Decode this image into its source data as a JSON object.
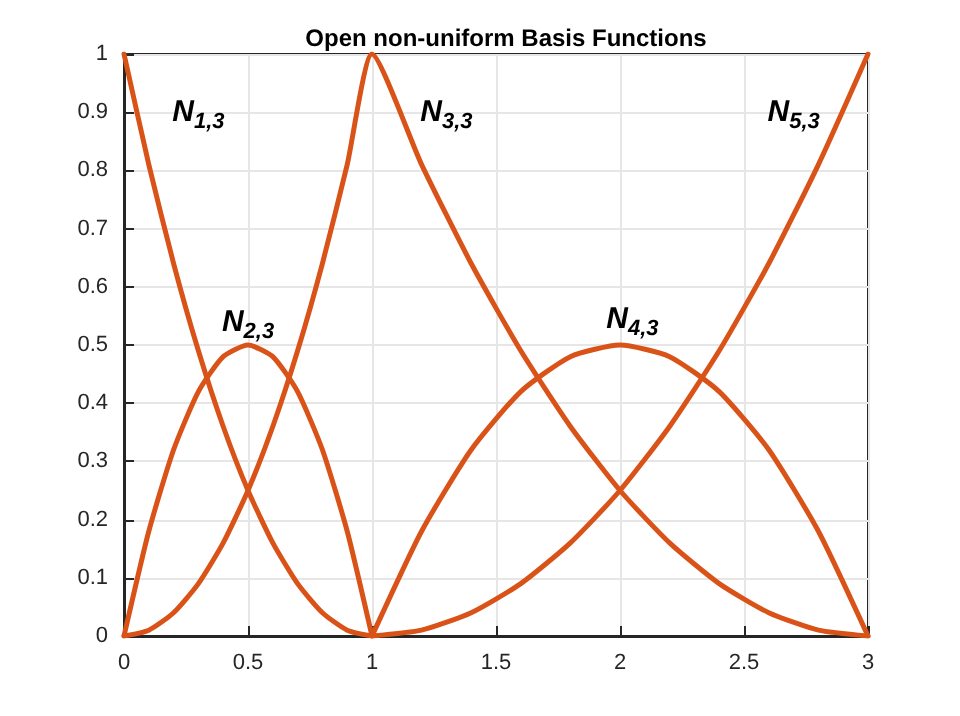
{
  "chart_data": {
    "type": "line",
    "title": "Open non-uniform Basis Functions",
    "series": [
      {
        "name": "N$_{1,3}$",
        "color": "#d95319",
        "x": [
          0,
          0.1,
          0.2,
          0.3,
          0.4,
          0.5,
          0.6,
          0.7,
          0.8,
          0.9,
          1
        ],
        "values": [
          1,
          0.81,
          0.64,
          0.49,
          0.36,
          0.25,
          0.16,
          0.09,
          0.04,
          0.01,
          0
        ]
      },
      {
        "name": "N$_{2,3}$",
        "color": "#d95319",
        "x": [
          0,
          0.1,
          0.2,
          0.3,
          0.4,
          0.5,
          0.6,
          0.7,
          0.8,
          0.9,
          1
        ],
        "values": [
          0,
          0.18,
          0.32,
          0.42,
          0.48,
          0.5,
          0.48,
          0.42,
          0.32,
          0.18,
          0
        ]
      },
      {
        "name": "N$_{3,3}$",
        "color": "#d95319",
        "x": [
          0,
          0.1,
          0.2,
          0.3,
          0.4,
          0.5,
          0.6,
          0.7,
          0.8,
          0.9,
          1,
          1.2,
          1.4,
          1.6,
          1.8,
          2,
          2.2,
          2.4,
          2.6,
          2.8,
          3
        ],
        "values": [
          0,
          0.01,
          0.04,
          0.09,
          0.16,
          0.25,
          0.36,
          0.49,
          0.64,
          0.81,
          1,
          0.81,
          0.64,
          0.49,
          0.36,
          0.25,
          0.16,
          0.09,
          0.04,
          0.01,
          0
        ]
      },
      {
        "name": "N$_{4,3}$",
        "color": "#d95319",
        "x": [
          1,
          1.2,
          1.4,
          1.6,
          1.8,
          2,
          2.2,
          2.4,
          2.6,
          2.8,
          3
        ],
        "values": [
          0,
          0.18,
          0.32,
          0.42,
          0.48,
          0.5,
          0.48,
          0.42,
          0.32,
          0.18,
          0
        ]
      },
      {
        "name": "N$_{5,3}$",
        "color": "#d95319",
        "x": [
          1,
          1.2,
          1.4,
          1.6,
          1.8,
          2,
          2.2,
          2.4,
          2.6,
          2.8,
          3
        ],
        "values": [
          0,
          0.01,
          0.04,
          0.09,
          0.16,
          0.25,
          0.36,
          0.49,
          0.64,
          0.81,
          1
        ]
      }
    ],
    "xlim": [
      0,
      3
    ],
    "xticks": [
      0,
      0.5,
      1,
      1.5,
      2,
      2.5,
      3
    ],
    "ylim": [
      0,
      1
    ],
    "yticks": [
      0,
      0.1,
      0.2,
      0.3,
      0.4,
      0.5,
      0.6,
      0.7,
      0.8,
      0.9,
      1
    ],
    "grid": true,
    "legend": false,
    "marker": "none",
    "line_style": "solid"
  }
}
